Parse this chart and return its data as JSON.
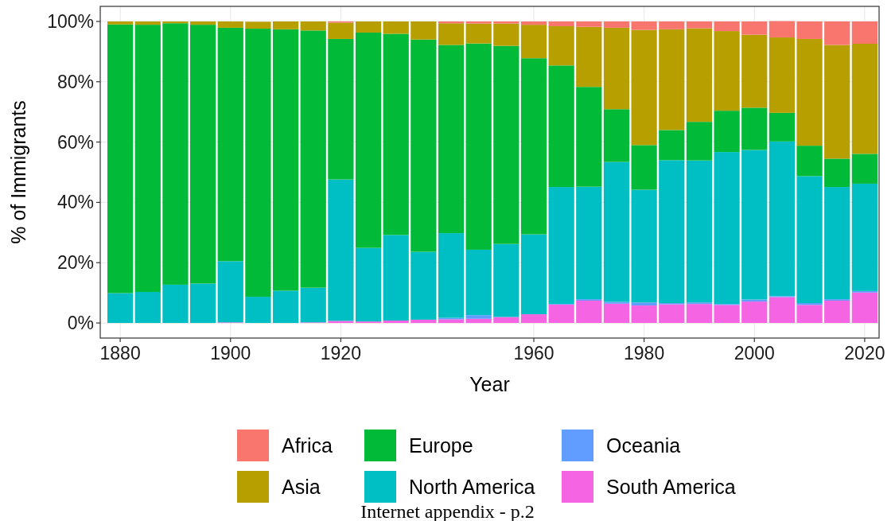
{
  "chart_data": {
    "type": "bar",
    "stacked": true,
    "xlabel": "Year",
    "ylabel": "% of Immigrants",
    "categories": [
      "1880",
      null,
      null,
      null,
      "1900",
      null,
      null,
      null,
      "1920",
      null,
      null,
      null,
      null,
      null,
      null,
      "1960",
      null,
      null,
      null,
      "1980",
      null,
      null,
      null,
      "2000",
      null,
      null,
      null,
      "2020"
    ],
    "series": [
      {
        "name": "South America",
        "color": "#f564e3",
        "values": [
          0,
          0,
          0,
          0,
          0.2,
          0,
          0,
          0.2,
          0.7,
          0.5,
          0.8,
          1.1,
          1.2,
          1.4,
          2.0,
          2.9,
          6.1,
          7.4,
          6.4,
          5.8,
          6.2,
          6.3,
          6.0,
          7.1,
          8.6,
          6.0,
          7.4,
          10.1
        ]
      },
      {
        "name": "Oceania",
        "color": "#619cff",
        "values": [
          0,
          0,
          0,
          0,
          0,
          0,
          0,
          0,
          0,
          0,
          0,
          0,
          0.5,
          1.2,
          0,
          0,
          0.2,
          0.5,
          0.6,
          1.0,
          0.4,
          0.5,
          0.3,
          0.7,
          0.3,
          0.6,
          0.5,
          0.5
        ]
      },
      {
        "name": "North America",
        "color": "#00bfc4",
        "values": [
          9.9,
          10.3,
          12.7,
          13.1,
          20.3,
          8.7,
          10.7,
          11.5,
          46.9,
          24.4,
          28.4,
          22.5,
          28.1,
          21.7,
          24.2,
          26.5,
          38.8,
          37.3,
          46.4,
          37.4,
          47.4,
          47.1,
          50.4,
          49.6,
          51.3,
          42.1,
          37.2,
          35.6
        ]
      },
      {
        "name": "Europe",
        "color": "#00ba38",
        "values": [
          89.1,
          88.6,
          86.7,
          85.8,
          77.4,
          88.9,
          86.7,
          85.3,
          46.6,
          71.4,
          66.7,
          70.4,
          62.4,
          68.4,
          65.7,
          58.4,
          40.3,
          33.1,
          17.5,
          14.8,
          10.0,
          12.8,
          13.7,
          14.0,
          9.5,
          10.1,
          9.4,
          9.9
        ]
      },
      {
        "name": "Asia",
        "color": "#b79f00",
        "values": [
          1.0,
          1.1,
          0.6,
          1.1,
          2.1,
          2.3,
          2.6,
          3.0,
          5.4,
          3.7,
          4.1,
          6.0,
          7.2,
          6.6,
          7.4,
          11.1,
          13.0,
          19.9,
          27.0,
          38.2,
          33.4,
          31.0,
          26.4,
          24.2,
          25.0,
          35.4,
          37.7,
          36.5
        ]
      },
      {
        "name": "Africa",
        "color": "#f8766d",
        "values": [
          0,
          0,
          0,
          0,
          0,
          0,
          0,
          0,
          0.4,
          0,
          0,
          0,
          0.6,
          0.7,
          0.7,
          1.1,
          1.6,
          1.8,
          2.1,
          2.8,
          2.6,
          2.3,
          3.2,
          4.4,
          5.4,
          5.8,
          7.8,
          7.4
        ]
      }
    ],
    "ylim": [
      -5,
      105
    ],
    "yticks": [
      {
        "value": 0,
        "label": "0%"
      },
      {
        "value": 20,
        "label": "20%"
      },
      {
        "value": 40,
        "label": "40%"
      },
      {
        "value": 60,
        "label": "60%"
      },
      {
        "value": 80,
        "label": "80%"
      },
      {
        "value": 100,
        "label": "100%"
      }
    ],
    "grid": true,
    "legend": "bottom",
    "annotations": [
      "Internet appendix - p.2"
    ]
  }
}
